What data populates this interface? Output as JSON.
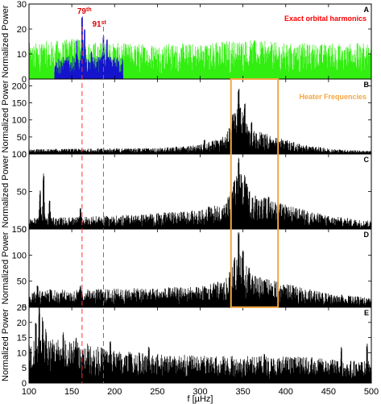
{
  "figure": {
    "xlabel": "f [µHz]",
    "panel_ylabel": "Normalized Power",
    "x_ticks": [
      100,
      150,
      200,
      250,
      300,
      350,
      400,
      450,
      500
    ],
    "xlim": [
      100,
      500
    ],
    "harmonic_markers": [
      {
        "base": "79",
        "suffix": "th",
        "x": 162
      },
      {
        "base": "91",
        "suffix": "st",
        "x": 187
      }
    ],
    "heater_box": {
      "x0": 336,
      "x1": 391,
      "label": "Heater Frequencies",
      "color": "#f5a641"
    },
    "colors": {
      "trace": "#000000",
      "harmonics": "#ff0000",
      "green": "#33ee11",
      "blue": "#1414cc",
      "marker_line": "#ff3333"
    }
  },
  "chart_data": [
    {
      "type": "line",
      "panel": "A",
      "annotation": "Exact orbital harmonics",
      "ylabel": "Normalized Power",
      "xlabel": "",
      "xlim": [
        100,
        500
      ],
      "ylim": [
        0,
        30
      ],
      "yticks": [
        0,
        10,
        20,
        30
      ],
      "series": [
        {
          "color": "#33ee11",
          "profile": [
            [
              100,
              8
            ],
            [
              150,
              9
            ],
            [
              200,
              8
            ],
            [
              300,
              8
            ],
            [
              345,
              9
            ],
            [
              400,
              8
            ],
            [
              500,
              8
            ]
          ],
          "peaks": [
            [
              115,
              14
            ],
            [
              150,
              17
            ],
            [
              200,
              13
            ],
            [
              348,
              14
            ],
            [
              383,
              14
            ],
            [
              462,
              13
            ]
          ]
        },
        {
          "color": "#1414cc",
          "x_range": [
            130,
            210
          ],
          "profile": [
            [
              130,
              5
            ],
            [
              210,
              5
            ]
          ],
          "peaks": [
            [
              162,
              25
            ],
            [
              165,
              20
            ],
            [
              156,
              16
            ],
            [
              187,
              18
            ],
            [
              191,
              16
            ],
            [
              173,
              11
            ]
          ]
        }
      ]
    },
    {
      "type": "line",
      "panel": "B",
      "annotation": "Heater Frequencies",
      "ylabel": "Normalized Power",
      "xlabel": "",
      "xlim": [
        100,
        500
      ],
      "ylim": [
        0,
        220
      ],
      "yticks": [
        0,
        50,
        100,
        150,
        200
      ],
      "series": [
        {
          "color": "#000000",
          "profile": [
            [
              100,
              8
            ],
            [
              250,
              10
            ],
            [
              300,
              15
            ],
            [
              330,
              30
            ],
            [
              345,
              85
            ],
            [
              360,
              40
            ],
            [
              390,
              28
            ],
            [
              420,
              15
            ],
            [
              460,
              8
            ],
            [
              500,
              5
            ]
          ],
          "peaks": [
            [
              345,
              210
            ],
            [
              352,
              150
            ],
            [
              338,
              125
            ],
            [
              360,
              95
            ],
            [
              372,
              60
            ],
            [
              392,
              40
            ],
            [
              305,
              42
            ]
          ]
        }
      ]
    },
    {
      "type": "line",
      "panel": "C",
      "ylabel": "Normalized Power",
      "xlabel": "",
      "xlim": [
        100,
        500
      ],
      "ylim": [
        0,
        100
      ],
      "yticks": [
        0,
        50,
        100
      ],
      "series": [
        {
          "color": "#000000",
          "profile": [
            [
              100,
              8
            ],
            [
              200,
              10
            ],
            [
              300,
              14
            ],
            [
              330,
              20
            ],
            [
              345,
              45
            ],
            [
              360,
              28
            ],
            [
              400,
              18
            ],
            [
              450,
              10
            ],
            [
              500,
              6
            ]
          ],
          "peaks": [
            [
              117,
              75
            ],
            [
              113,
              52
            ],
            [
              124,
              40
            ],
            [
              160,
              28
            ],
            [
              345,
              100
            ],
            [
              352,
              72
            ],
            [
              340,
              65
            ],
            [
              380,
              45
            ],
            [
              366,
              40
            ],
            [
              310,
              30
            ]
          ]
        }
      ]
    },
    {
      "type": "line",
      "panel": "D",
      "ylabel": "Normalized Power",
      "xlabel": "",
      "xlim": [
        100,
        500
      ],
      "ylim": [
        0,
        150
      ],
      "yticks": [
        0,
        50,
        100,
        150
      ],
      "series": [
        {
          "color": "#000000",
          "profile": [
            [
              100,
              18
            ],
            [
              200,
              20
            ],
            [
              300,
              22
            ],
            [
              330,
              30
            ],
            [
              345,
              60
            ],
            [
              360,
              35
            ],
            [
              400,
              25
            ],
            [
              450,
              15
            ],
            [
              500,
              10
            ]
          ],
          "peaks": [
            [
              345,
              145
            ],
            [
              350,
              110
            ],
            [
              340,
              100
            ],
            [
              357,
              80
            ],
            [
              375,
              55
            ],
            [
              110,
              42
            ],
            [
              160,
              42
            ],
            [
              125,
              36
            ],
            [
              305,
              40
            ]
          ]
        }
      ]
    },
    {
      "type": "line",
      "panel": "E",
      "ylabel": "Normalized Power",
      "xlabel": "f [µHz]",
      "xlim": [
        100,
        500
      ],
      "ylim": [
        0,
        25
      ],
      "yticks": [
        0,
        5,
        10,
        15,
        20,
        25
      ],
      "series": [
        {
          "color": "#000000",
          "profile": [
            [
              100,
              8
            ],
            [
              150,
              8
            ],
            [
              200,
              6
            ],
            [
              300,
              5
            ],
            [
              400,
              5
            ],
            [
              500,
              4
            ]
          ],
          "peaks": [
            [
              112,
              25
            ],
            [
              116,
              22
            ],
            [
              108,
              20
            ],
            [
              120,
              18
            ],
            [
              140,
              17
            ],
            [
              155,
              15
            ],
            [
              195,
              14
            ],
            [
              240,
              12
            ],
            [
              375,
              10
            ],
            [
              465,
              12
            ],
            [
              495,
              13
            ]
          ]
        }
      ]
    }
  ]
}
